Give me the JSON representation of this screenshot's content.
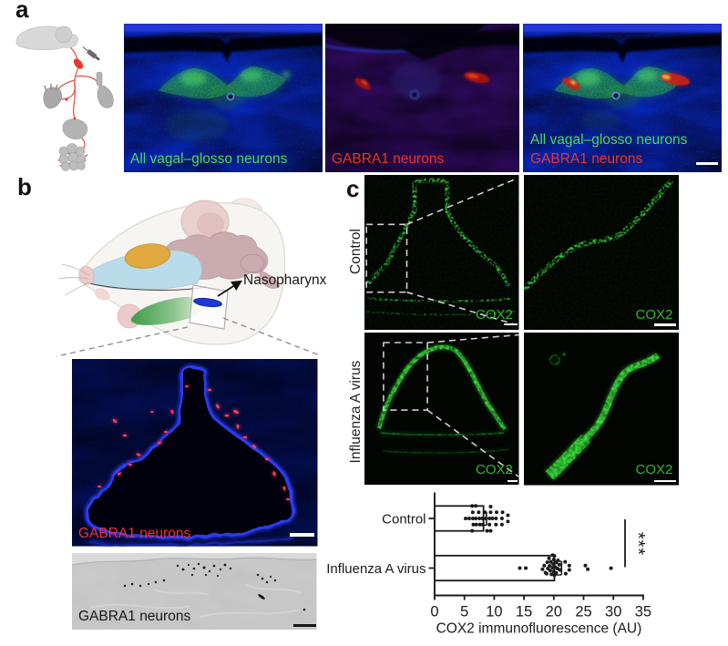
{
  "figure_type": "scientific-paper-figure",
  "panels": {
    "a": {
      "label": "a",
      "img1_label": "All vagal–glosso neurons",
      "img2_label": "GABRA1 neurons",
      "img3_label_line1": "All vagal–glosso neurons",
      "img3_label_line2": "GABRA1 neurons"
    },
    "b": {
      "label": "b",
      "annotation": "Nasopharynx",
      "fluor_label": "GABRA1 neurons",
      "brightfield_label": "GABRA1 neurons"
    },
    "c": {
      "label": "c",
      "row1_label": "Control",
      "row2_label": "Influenza A virus",
      "marker_label": "COX2"
    }
  },
  "colors": {
    "green_label": "#48dc58",
    "red_label": "#ee3426",
    "cox2_green": "#2db92d",
    "dapi_blue": "#1c2bbf",
    "gfp_green": "#3fd54a",
    "tdtomato_red": "#e03122",
    "chart_ink": "#1a1a1a"
  },
  "chart_data": {
    "type": "scatter",
    "orientation": "horizontal",
    "title": "",
    "xlabel": "COX2 immunofluorescence (AU)",
    "ylabel": "",
    "xlim": [
      0,
      35
    ],
    "x_ticks": [
      0,
      5,
      10,
      15,
      20,
      25,
      30,
      35
    ],
    "categories": [
      "Control",
      "Influenza A virus"
    ],
    "significance": "***",
    "series": [
      {
        "name": "Control",
        "mean": 8.2,
        "whisker": 8.7,
        "points": [
          [
            6.3,
            -13.8
          ],
          [
            6.9,
            -13.8
          ],
          [
            9.4,
            -13.0
          ],
          [
            6.4,
            -6.8
          ],
          [
            7.4,
            -6.8
          ],
          [
            8.4,
            -6.8
          ],
          [
            9.4,
            -6.8
          ],
          [
            10.4,
            -6.8
          ],
          [
            11.4,
            -6.8
          ],
          [
            12.3,
            -3.5
          ],
          [
            5.2,
            0
          ],
          [
            5.8,
            0
          ],
          [
            6.4,
            0
          ],
          [
            6.9,
            0
          ],
          [
            7.5,
            0
          ],
          [
            8.0,
            0
          ],
          [
            8.6,
            0
          ],
          [
            9.2,
            0
          ],
          [
            9.7,
            0
          ],
          [
            10.3,
            0
          ],
          [
            11.3,
            0
          ],
          [
            12.3,
            3.4
          ],
          [
            6.5,
            6.8
          ],
          [
            7.0,
            6.8
          ],
          [
            7.6,
            6.8
          ],
          [
            8.1,
            6.8
          ],
          [
            9.2,
            6.8
          ],
          [
            10.3,
            6.8
          ],
          [
            11.3,
            6.8
          ],
          [
            6.3,
            13.6
          ],
          [
            8.8,
            13.6
          ],
          [
            9.4,
            13.6
          ]
        ]
      },
      {
        "name": "Influenza A virus",
        "mean": 20.1,
        "whisker": 21.3,
        "points": [
          [
            14.3,
            0
          ],
          [
            15.3,
            0
          ],
          [
            18.1,
            1.2
          ],
          [
            18.4,
            -2.8
          ],
          [
            18.6,
            5.0
          ],
          [
            18.9,
            -6.4
          ],
          [
            19.0,
            0.4
          ],
          [
            18.8,
            6.1
          ],
          [
            19.2,
            -10.7
          ],
          [
            19.3,
            -2.5
          ],
          [
            19.4,
            2.8
          ],
          [
            19.5,
            -6.9
          ],
          [
            19.6,
            6.9
          ],
          [
            19.8,
            -14.2
          ],
          [
            19.8,
            -0.4
          ],
          [
            19.9,
            -4.5
          ],
          [
            20.0,
            -9.4
          ],
          [
            20.0,
            3.7
          ],
          [
            20.1,
            7.7
          ],
          [
            20.1,
            -13.4
          ],
          [
            20.2,
            -1.2
          ],
          [
            20.4,
            -6.1
          ],
          [
            20.4,
            5.3
          ],
          [
            20.6,
            0.4
          ],
          [
            20.7,
            -8.5
          ],
          [
            20.9,
            -3.7
          ],
          [
            21.0,
            2.0
          ],
          [
            21.9,
            -6.9
          ],
          [
            22.0,
            6.1
          ],
          [
            22.6,
            -2.8
          ],
          [
            22.6,
            2.0
          ],
          [
            25.3,
            -2.8
          ],
          [
            25.7,
            1.2
          ],
          [
            29.6,
            0.1
          ]
        ]
      }
    ]
  }
}
